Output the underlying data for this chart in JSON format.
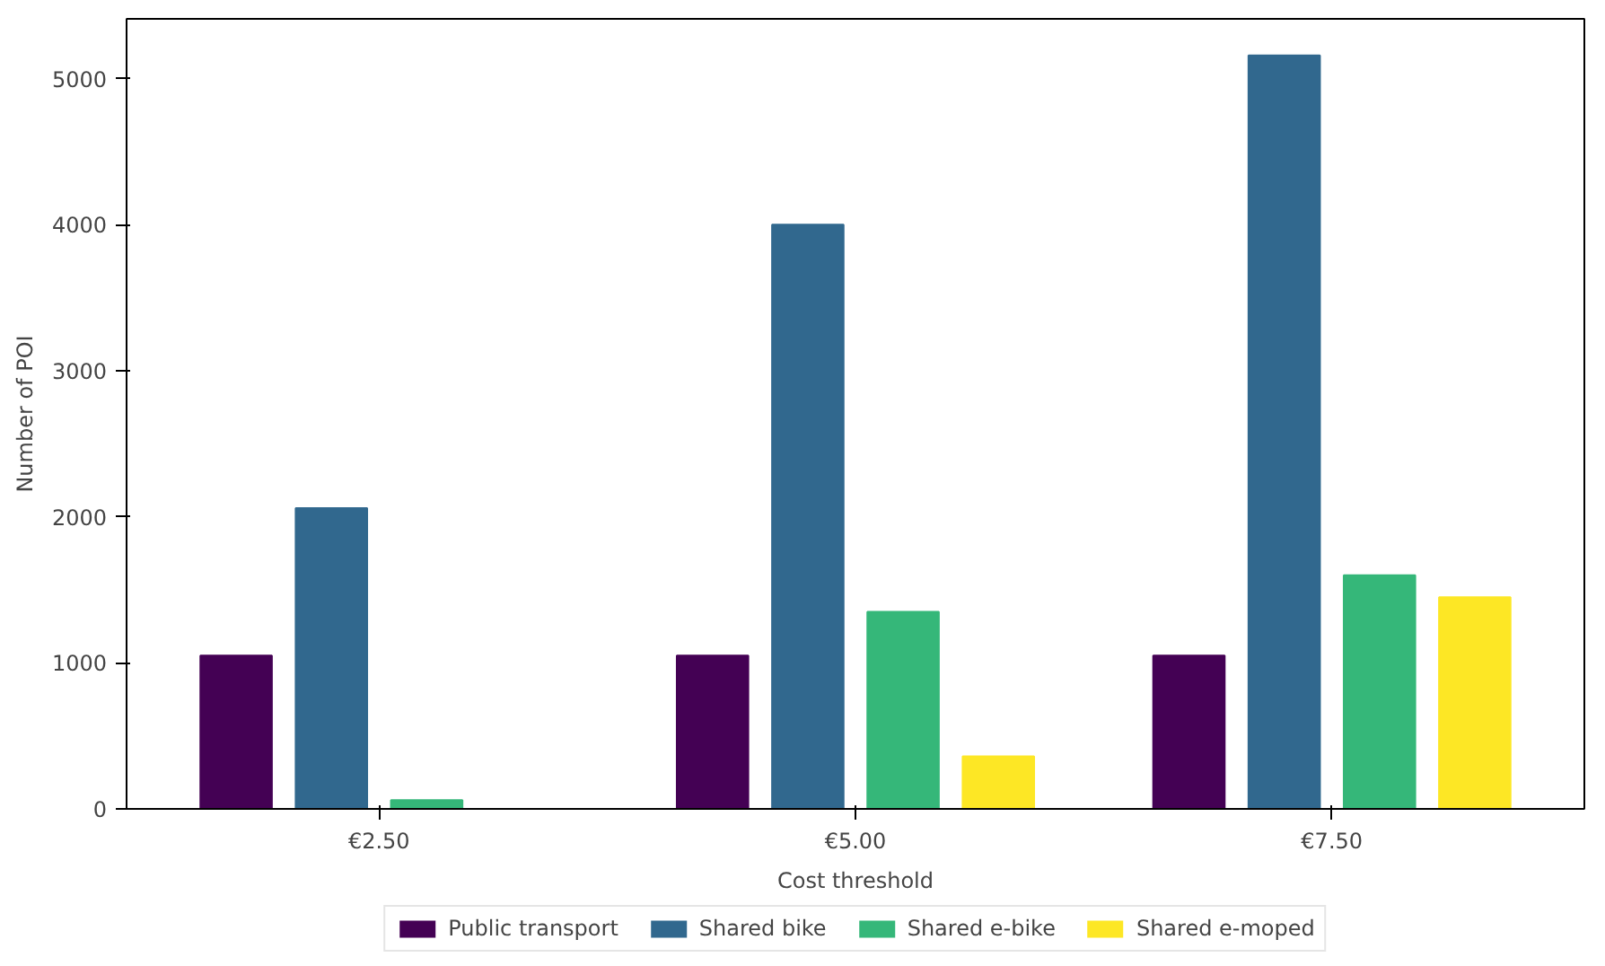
{
  "chart_data": {
    "type": "bar",
    "xlabel": "Cost threshold",
    "ylabel": "Number of POI",
    "categories": [
      "€2.50",
      "€5.00",
      "€7.50"
    ],
    "series": [
      {
        "name": "Public transport",
        "color": "#440154",
        "values": [
          1050,
          1050,
          1050
        ]
      },
      {
        "name": "Shared bike",
        "color": "#31688e",
        "values": [
          2060,
          4000,
          5160
        ]
      },
      {
        "name": "Shared e-bike",
        "color": "#35b779",
        "values": [
          60,
          1350,
          1600
        ]
      },
      {
        "name": "Shared e-moped",
        "color": "#fde725",
        "values": [
          0,
          360,
          1450
        ]
      }
    ],
    "ylim": [
      0,
      5410
    ],
    "yticks": [
      0,
      1000,
      2000,
      3000,
      4000,
      5000
    ],
    "grid": false,
    "legend": "bottom"
  }
}
